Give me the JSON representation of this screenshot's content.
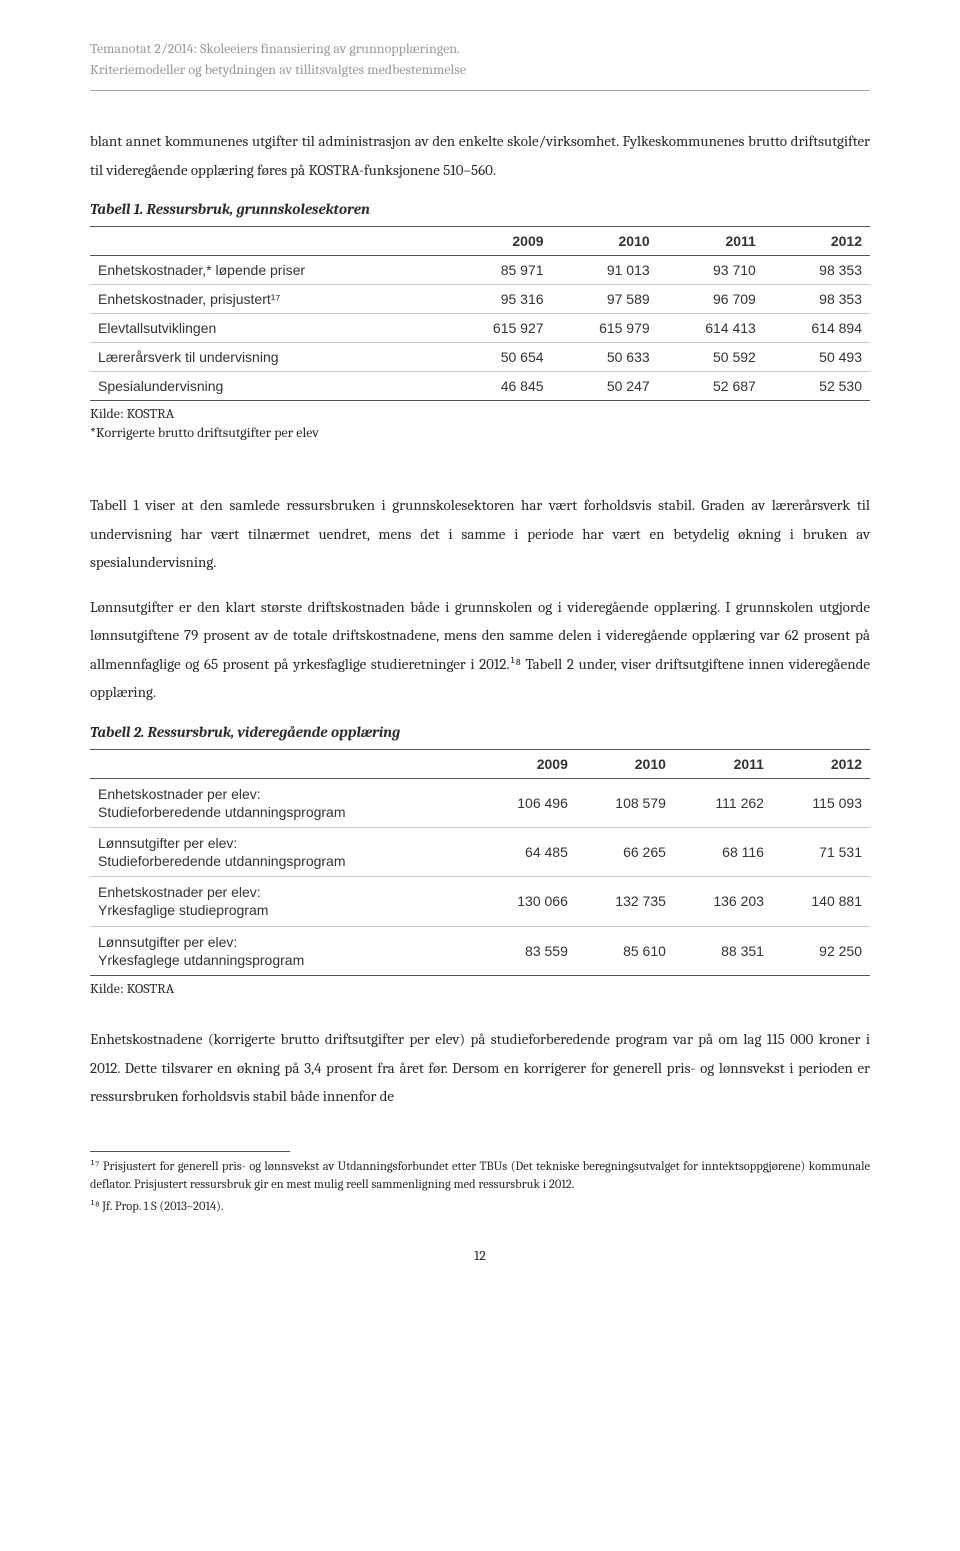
{
  "header": {
    "line1": "Temanotat 2/2014: Skoleeiers finansiering av grunnopplæringen.",
    "line2": "Kriteriemodeller og betydningen av tillitsvalgtes medbestemmelse"
  },
  "intro_paragraph": "blant annet kommunenes utgifter til administrasjon av den enkelte skole/virksomhet. Fylkeskommunenes brutto driftsutgifter til videregående opplæring føres på KOSTRA-funksjonene 510–560.",
  "table1": {
    "caption": "Tabell 1. Ressursbruk, grunnskolesektoren",
    "columns": [
      "",
      "2009",
      "2010",
      "2011",
      "2012"
    ],
    "rows": [
      [
        "Enhetskostnader,* løpende priser",
        "85 971",
        "91 013",
        "93 710",
        "98 353"
      ],
      [
        "Enhetskostnader, prisjustert¹⁷",
        "95 316",
        "97 589",
        "96 709",
        "98 353"
      ],
      [
        "Elevtallsutviklingen",
        "615 927",
        "615 979",
        "614 413",
        "614 894"
      ],
      [
        "Lærerårsverk til undervisning",
        "50 654",
        "50 633",
        "50 592",
        "50 493"
      ],
      [
        "Spesialundervisning",
        "46 845",
        "50 247",
        "52 687",
        "52 530"
      ]
    ],
    "source": "Kilde: KOSTRA",
    "note": "*Korrigerte brutto driftsutgifter per elev"
  },
  "mid_paragraph1": "Tabell 1 viser at den samlede ressursbruken i grunnskolesektoren har vært forholdsvis stabil. Graden av lærerårsverk til undervisning har vært tilnærmet uendret, mens det i samme i periode har vært en betydelig økning i bruken av spesialundervisning.",
  "mid_paragraph2": "Lønnsutgifter er den klart største driftskostnaden både i grunnskolen og i videregående opplæring. I grunnskolen utgjorde lønnsutgiftene 79 prosent av de totale driftskostnadene, mens den samme delen i videregående opplæring var 62 prosent på allmennfaglige og 65 prosent på yrkesfaglige studieretninger i 2012.¹⁸ Tabell 2 under, viser driftsutgiftene innen videregående opplæring.",
  "table2": {
    "caption": "Tabell 2. Ressursbruk, videregående opplæring",
    "columns": [
      "",
      "2009",
      "2010",
      "2011",
      "2012"
    ],
    "rows": [
      [
        "Enhetskostnader per elev:\nStudieforberedende utdanningsprogram",
        "106 496",
        "108 579",
        "111 262",
        "115 093"
      ],
      [
        "Lønnsutgifter per elev:\nStudieforberedende utdanningsprogram",
        "64 485",
        "66 265",
        "68 116",
        "71 531"
      ],
      [
        "Enhetskostnader per elev:\nYrkesfaglige studieprogram",
        "130 066",
        "132 735",
        "136 203",
        "140 881"
      ],
      [
        "Lønnsutgifter per elev:\nYrkesfaglege utdanningsprogram",
        "83 559",
        "85 610",
        "88 351",
        "92 250"
      ]
    ],
    "source": "Kilde: KOSTRA"
  },
  "end_paragraph": "Enhetskostnadene (korrigerte brutto driftsutgifter per elev) på studieforberedende program var på om lag 115 000 kroner i 2012. Dette tilsvarer en økning på 3,4 prosent fra året før. Dersom en korrigerer for generell pris- og lønnsvekst i perioden er ressursbruken forholdsvis stabil både innenfor de",
  "footnotes": {
    "fn17": "¹⁷ Prisjustert for generell pris- og lønnsvekst av Utdanningsforbundet etter TBUs (Det tekniske beregningsutvalget for inntektsoppgjørene) kommunale deflator. Prisjustert ressursbruk gir en mest mulig reell sammenligning med ressursbruk i 2012.",
    "fn18": "¹⁸ Jf. Prop. 1 S (2013–2014)."
  },
  "page_number": "12"
}
